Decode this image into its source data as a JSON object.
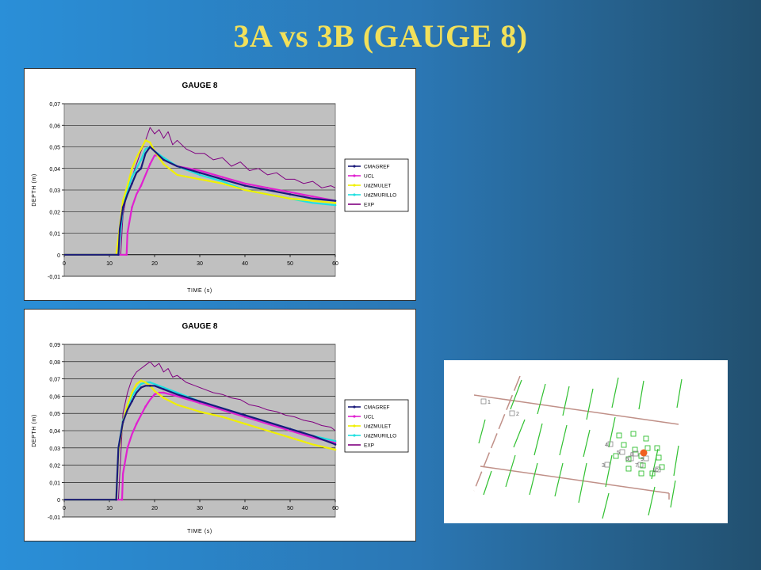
{
  "slide": {
    "title": "3A vs 3B   (GAUGE 8)"
  },
  "colors": {
    "CMAGREF": "#1a1a7a",
    "UCL": "#e020d0",
    "UdZMULET": "#f0f000",
    "UdZMURILLO": "#20e0e0",
    "EXP": "#800080",
    "plot_bg": "#c0c0c0",
    "map_line": "#c09088",
    "map_green": "#30c030",
    "gauge_marker": "#f06020"
  },
  "chart_data": [
    {
      "type": "line",
      "title": "GAUGE 8",
      "xlabel": "TIME (s)",
      "ylabel": "DEPTH (m)",
      "xlim": [
        0,
        60
      ],
      "ylim": [
        -0.01,
        0.07
      ],
      "xticks": [
        "0",
        "10",
        "20",
        "30",
        "40",
        "50",
        "60"
      ],
      "yticks": [
        "-0,01",
        "0",
        "0,01",
        "0,02",
        "0,03",
        "0,04",
        "0,05",
        "0,06",
        "0,07"
      ],
      "grid": true,
      "legend": "right",
      "series": [
        {
          "name": "CMAGREF",
          "x": [
            0,
            12,
            12.3,
            13,
            14,
            15,
            16,
            17,
            18,
            19,
            20,
            22,
            25,
            30,
            35,
            40,
            45,
            50,
            55,
            60
          ],
          "y": [
            0,
            0,
            0.012,
            0.022,
            0.028,
            0.033,
            0.038,
            0.04,
            0.047,
            0.05,
            0.048,
            0.044,
            0.041,
            0.038,
            0.035,
            0.032,
            0.03,
            0.028,
            0.026,
            0.025
          ]
        },
        {
          "name": "UCL",
          "x": [
            0,
            13.8,
            14,
            15,
            16,
            17,
            18,
            19,
            20,
            21,
            22,
            25,
            30,
            35,
            40,
            45,
            50,
            55,
            60
          ],
          "y": [
            0,
            0,
            0.01,
            0.022,
            0.028,
            0.032,
            0.037,
            0.042,
            0.046,
            0.046,
            0.044,
            0.041,
            0.039,
            0.036,
            0.033,
            0.031,
            0.029,
            0.027,
            0.025
          ]
        },
        {
          "name": "UdZMULET",
          "x": [
            0,
            11.5,
            12,
            13,
            14,
            15,
            16,
            17,
            18,
            19,
            20,
            22,
            25,
            30,
            35,
            40,
            45,
            50,
            55,
            60
          ],
          "y": [
            0,
            0,
            0.008,
            0.025,
            0.032,
            0.04,
            0.045,
            0.049,
            0.053,
            0.052,
            0.048,
            0.042,
            0.037,
            0.035,
            0.033,
            0.03,
            0.028,
            0.026,
            0.025,
            0.024
          ]
        },
        {
          "name": "UdZMURILLO",
          "x": [
            0,
            12,
            12.5,
            13,
            14,
            15,
            16,
            17,
            18,
            19,
            20,
            22,
            25,
            30,
            35,
            40,
            45,
            50,
            55,
            60
          ],
          "y": [
            0,
            0,
            0.012,
            0.022,
            0.03,
            0.036,
            0.04,
            0.044,
            0.049,
            0.05,
            0.048,
            0.045,
            0.041,
            0.037,
            0.034,
            0.03,
            0.028,
            0.026,
            0.024,
            0.023
          ]
        },
        {
          "name": "EXP",
          "x": [
            0,
            12.5,
            13,
            14,
            15,
            16,
            17,
            18,
            19,
            20,
            21,
            22,
            23,
            24,
            25,
            27,
            29,
            31,
            33,
            35,
            37,
            39,
            41,
            43,
            45,
            47,
            49,
            51,
            53,
            55,
            57,
            59,
            60
          ],
          "y": [
            0,
            0,
            0.018,
            0.03,
            0.036,
            0.042,
            0.048,
            0.053,
            0.059,
            0.056,
            0.058,
            0.054,
            0.057,
            0.051,
            0.053,
            0.049,
            0.047,
            0.047,
            0.044,
            0.045,
            0.041,
            0.043,
            0.039,
            0.04,
            0.037,
            0.038,
            0.035,
            0.035,
            0.033,
            0.034,
            0.031,
            0.032,
            0.031
          ]
        }
      ]
    },
    {
      "type": "line",
      "title": "GAUGE 8",
      "xlabel": "TIME (s)",
      "ylabel": "DEPTH (m)",
      "xlim": [
        0,
        60
      ],
      "ylim": [
        -0.01,
        0.09
      ],
      "xticks": [
        "0",
        "10",
        "20",
        "30",
        "40",
        "50",
        "60"
      ],
      "yticks": [
        "-0,01",
        "0",
        "0,01",
        "0,02",
        "0,03",
        "0,04",
        "0,05",
        "0,06",
        "0,07",
        "0,08",
        "0,09"
      ],
      "grid": true,
      "legend": "right",
      "series": [
        {
          "name": "CMAGREF",
          "x": [
            0,
            11.5,
            12,
            13,
            14,
            15,
            16,
            17,
            18,
            19,
            20,
            22,
            25,
            30,
            35,
            40,
            45,
            50,
            55,
            60
          ],
          "y": [
            0,
            0,
            0.03,
            0.045,
            0.052,
            0.057,
            0.062,
            0.065,
            0.066,
            0.066,
            0.066,
            0.064,
            0.061,
            0.057,
            0.053,
            0.049,
            0.045,
            0.041,
            0.037,
            0.032
          ]
        },
        {
          "name": "UCL",
          "x": [
            0,
            12.8,
            13,
            14,
            15,
            16,
            17,
            18,
            19,
            20,
            21,
            22,
            25,
            30,
            35,
            40,
            45,
            50,
            55,
            60
          ],
          "y": [
            0,
            0,
            0.015,
            0.03,
            0.038,
            0.044,
            0.049,
            0.054,
            0.058,
            0.061,
            0.062,
            0.062,
            0.06,
            0.056,
            0.052,
            0.048,
            0.044,
            0.04,
            0.036,
            0.033
          ]
        },
        {
          "name": "UdZMULET",
          "x": [
            0,
            11.5,
            12,
            13,
            14,
            15,
            16,
            17,
            18,
            19,
            20,
            22,
            25,
            30,
            35,
            40,
            45,
            50,
            55,
            60
          ],
          "y": [
            0,
            0,
            0.028,
            0.045,
            0.055,
            0.062,
            0.067,
            0.069,
            0.068,
            0.066,
            0.063,
            0.059,
            0.055,
            0.051,
            0.048,
            0.044,
            0.04,
            0.036,
            0.032,
            0.029
          ]
        },
        {
          "name": "UdZMURILLO",
          "x": [
            0,
            11.5,
            12,
            13,
            14,
            15,
            16,
            17,
            18,
            19,
            20,
            22,
            25,
            30,
            35,
            40,
            45,
            50,
            55,
            60
          ],
          "y": [
            0,
            0,
            0.03,
            0.046,
            0.054,
            0.06,
            0.064,
            0.067,
            0.068,
            0.068,
            0.067,
            0.065,
            0.062,
            0.057,
            0.053,
            0.049,
            0.045,
            0.041,
            0.037,
            0.034
          ]
        },
        {
          "name": "EXP",
          "x": [
            0,
            12,
            12.5,
            13,
            14,
            15,
            16,
            17,
            18,
            19,
            20,
            21,
            22,
            23,
            24,
            25,
            27,
            29,
            31,
            33,
            35,
            37,
            39,
            41,
            43,
            45,
            47,
            49,
            51,
            53,
            55,
            57,
            59,
            60
          ],
          "y": [
            0,
            0,
            0.025,
            0.05,
            0.062,
            0.07,
            0.074,
            0.076,
            0.078,
            0.08,
            0.077,
            0.079,
            0.074,
            0.076,
            0.071,
            0.072,
            0.068,
            0.066,
            0.064,
            0.062,
            0.061,
            0.059,
            0.058,
            0.055,
            0.054,
            0.052,
            0.051,
            0.049,
            0.048,
            0.046,
            0.045,
            0.043,
            0.042,
            0.04
          ]
        }
      ]
    }
  ],
  "map": {
    "gauge_labels": [
      "1",
      "2",
      "3",
      "4",
      "5",
      "6",
      "7",
      "8",
      "9",
      "10"
    ]
  }
}
